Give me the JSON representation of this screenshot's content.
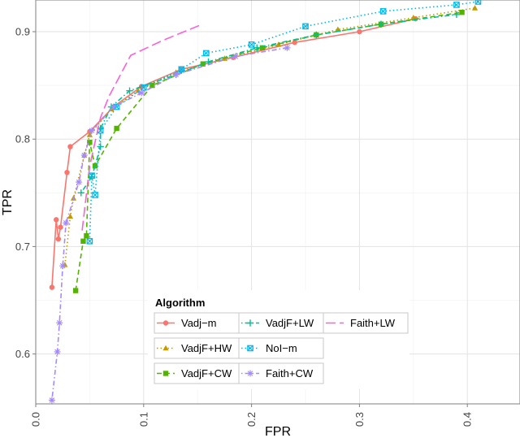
{
  "chart_data": {
    "type": "line",
    "xlabel": "FPR",
    "ylabel": "TPR",
    "xlim": [
      0.0,
      0.42
    ],
    "ylim": [
      0.555,
      0.928
    ],
    "x_ticks": [
      0.0,
      0.1,
      0.2,
      0.3,
      0.4
    ],
    "x_tick_labels": [
      "0.0",
      "0.1",
      "0.2",
      "0.3",
      "0.4"
    ],
    "y_ticks": [
      0.6,
      0.7,
      0.8,
      0.9
    ],
    "y_tick_labels": [
      "0.6",
      "0.7",
      "0.8",
      "0.9"
    ],
    "grid": true,
    "legend": {
      "title": "Algorithm",
      "placement": "bottom-left",
      "columns": [
        [
          0,
          1,
          2
        ],
        [
          3,
          4,
          5
        ],
        [
          6
        ]
      ]
    },
    "series": [
      {
        "name": "Vadj−m",
        "color": "#f8766d",
        "dash": "solid",
        "marker": "circle",
        "points": [
          [
            0.015,
            0.662
          ],
          [
            0.019,
            0.725
          ],
          [
            0.021,
            0.707
          ],
          [
            0.023,
            0.718
          ],
          [
            0.029,
            0.769
          ],
          [
            0.032,
            0.793
          ],
          [
            0.05,
            0.807
          ],
          [
            0.072,
            0.83
          ],
          [
            0.098,
            0.849
          ],
          [
            0.135,
            0.865
          ],
          [
            0.183,
            0.876
          ],
          [
            0.24,
            0.89
          ],
          [
            0.3,
            0.9
          ],
          [
            0.352,
            0.912
          ]
        ]
      },
      {
        "name": "VadjF+HW",
        "color": "#c49a00",
        "dash": "dotted",
        "marker": "triangle",
        "points": [
          [
            0.027,
            0.683
          ],
          [
            0.032,
            0.728
          ],
          [
            0.035,
            0.745
          ],
          [
            0.045,
            0.785
          ],
          [
            0.05,
            0.804
          ],
          [
            0.07,
            0.828
          ],
          [
            0.095,
            0.845
          ],
          [
            0.13,
            0.862
          ],
          [
            0.175,
            0.875
          ],
          [
            0.225,
            0.888
          ],
          [
            0.28,
            0.902
          ],
          [
            0.35,
            0.913
          ],
          [
            0.407,
            0.922
          ]
        ]
      },
      {
        "name": "VadjF+CW",
        "color": "#53b400",
        "dash": "dashed",
        "marker": "square",
        "points": [
          [
            0.037,
            0.659
          ],
          [
            0.044,
            0.705
          ],
          [
            0.047,
            0.71
          ],
          [
            0.05,
            0.797
          ],
          [
            0.055,
            0.775
          ],
          [
            0.075,
            0.81
          ],
          [
            0.108,
            0.85
          ],
          [
            0.155,
            0.87
          ],
          [
            0.21,
            0.885
          ],
          [
            0.26,
            0.897
          ],
          [
            0.32,
            0.907
          ],
          [
            0.395,
            0.918
          ]
        ]
      },
      {
        "name": "VadjF+LW",
        "color": "#00c094",
        "dash": "dotdash",
        "marker": "plus",
        "points": [
          [
            0.042,
            0.75
          ],
          [
            0.052,
            0.765
          ],
          [
            0.06,
            0.793
          ],
          [
            0.06,
            0.81
          ],
          [
            0.07,
            0.83
          ],
          [
            0.087,
            0.845
          ],
          [
            0.13,
            0.86
          ],
          [
            0.16,
            0.872
          ],
          [
            0.205,
            0.885
          ],
          [
            0.26,
            0.897
          ],
          [
            0.32,
            0.907
          ],
          [
            0.39,
            0.916
          ]
        ]
      },
      {
        "name": "NoI−m",
        "color": "#00b6eb",
        "dash": "dotted",
        "marker": "squarex",
        "points": [
          [
            0.05,
            0.705
          ],
          [
            0.052,
            0.766
          ],
          [
            0.055,
            0.748
          ],
          [
            0.06,
            0.808
          ],
          [
            0.075,
            0.83
          ],
          [
            0.1,
            0.848
          ],
          [
            0.135,
            0.865
          ],
          [
            0.158,
            0.88
          ],
          [
            0.2,
            0.888
          ],
          [
            0.25,
            0.905
          ],
          [
            0.322,
            0.919
          ],
          [
            0.39,
            0.925
          ],
          [
            0.41,
            0.928
          ]
        ]
      },
      {
        "name": "Faith+CW",
        "color": "#a58aff",
        "dash": "dotdash",
        "marker": "asterisk",
        "points": [
          [
            0.015,
            0.557
          ],
          [
            0.02,
            0.602
          ],
          [
            0.022,
            0.629
          ],
          [
            0.025,
            0.682
          ],
          [
            0.028,
            0.722
          ],
          [
            0.04,
            0.76
          ],
          [
            0.045,
            0.785
          ],
          [
            0.052,
            0.808
          ],
          [
            0.072,
            0.83
          ],
          [
            0.098,
            0.843
          ],
          [
            0.13,
            0.86
          ],
          [
            0.185,
            0.877
          ],
          [
            0.233,
            0.885
          ]
        ]
      },
      {
        "name": "Faith+LW",
        "color": "#fb61d7",
        "dash": "longdash",
        "marker": "none",
        "points": [
          [
            0.043,
            0.715
          ],
          [
            0.05,
            0.775
          ],
          [
            0.06,
            0.82
          ],
          [
            0.068,
            0.84
          ],
          [
            0.088,
            0.878
          ],
          [
            0.118,
            0.892
          ],
          [
            0.152,
            0.906
          ]
        ]
      }
    ]
  }
}
